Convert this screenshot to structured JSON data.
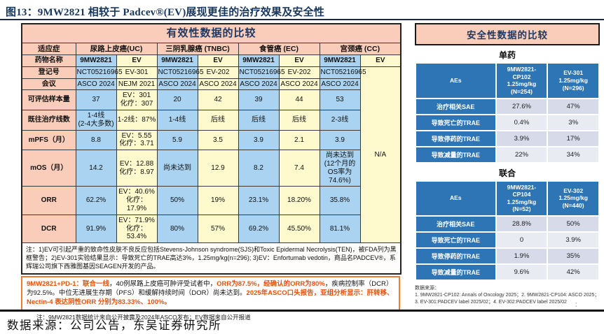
{
  "figure_title": "图13：9MW2821 相较于 Padcev®(EV)展现更佳的治疗效果及安全性",
  "colors": {
    "title_navy": "#1F3864",
    "panel_pink": "#F9CDB9",
    "cell_blue_9mw": "#A9D3F1",
    "cell_yellow_ev": "#FEFACD",
    "safety_header_blue": "#2E75B6",
    "safety_row_light": "#D7DBE9",
    "safety_row_lighter": "#E9EBF3",
    "callout_orange": "#ED7D31",
    "highlight_orange_text": "#E8500A"
  },
  "efficacy": {
    "title": "有效性数据的比较",
    "indication_label": "适应症",
    "indications": [
      "尿路上皮癌(UC)",
      "三阴乳腺癌 (TNBC)",
      "食管癌 (EC)",
      "宫颈癌 (CC)"
    ],
    "merged_cell": "N/A",
    "rows": [
      {
        "label": "药物名称",
        "bold": true,
        "cells": [
          "9MW2821",
          "EV",
          "9MW2821",
          "EV",
          "9MW2821",
          "EV",
          "9MW2821",
          "EV"
        ]
      },
      {
        "label": "登记号",
        "merge_start": true,
        "cells": [
          "NCT05216965",
          "EV-301",
          "NCT05216965",
          "EV-202",
          "NCT05216965",
          "EV-202",
          "NCT05216965"
        ]
      },
      {
        "label": "会议",
        "cells": [
          "ASCO 2024",
          "NEJM 2021",
          "ASCO 2024",
          "ASCO 2024",
          "ASCO 2024",
          "ASCO 2024",
          "ASCO 2024"
        ]
      },
      {
        "label": "可评估样本量",
        "cells": [
          "37",
          "EV：301\n化疗：307",
          "20",
          "42",
          "39",
          "44",
          "53"
        ]
      },
      {
        "label": "既往治疗线数",
        "cells": [
          "1-4线\n(2-4大多数)",
          "1-2线：87%",
          "1-4线",
          "后线",
          "后线",
          "后线",
          "2-3线"
        ]
      },
      {
        "label": "mPFS（月）",
        "cells": [
          "8.8",
          "EV：5.55\n化疗：3.71",
          "5.9",
          "3.5",
          "3.9",
          "2.1",
          "3.9"
        ]
      },
      {
        "label": "mOS（月）",
        "cells": [
          "14.2",
          "EV：12.88\n化疗：8.97",
          "尚未达到",
          "12.9",
          "8.2",
          "7.4",
          "尚未达到\n(12个月的\nOS率为\n74.6%)"
        ]
      },
      {
        "label": "ORR",
        "cells": [
          "62.2%",
          "EV：40.6%\n化疗：17.9%",
          "50%",
          "19%",
          "23.1%",
          "18.20%",
          "35.8%"
        ]
      },
      {
        "label": "DCR",
        "cells": [
          "91.9%",
          "EV：71.9%\n化疗：53.4%",
          "80%",
          "57%",
          "69.2%",
          "45.50%",
          "81.1%"
        ]
      }
    ],
    "note": "注：1)EV可引起严重的致命性皮肤不良反应包括Stevens-Johnson syndrome(SJS)和Toxic Epidermal Necrolysis(TEN)，被FDA列为黑框警告；2)EV-301实验结果显示：导致死亡的TRAE高达3%，1.25mg/kg(n=296); 3)EV：Enfortumab vedotin，商品名PADCEV®，系辉瑞公司旗下西雅图基因SEAGEN开发的产品。"
  },
  "callout": {
    "segments": [
      {
        "text": "9MW2821+PD-1：联合一线",
        "highlight": true
      },
      {
        "text": "，40例尿路上皮癌可肿评受试者中，",
        "highlight": false
      },
      {
        "text": "ORR为87.5%，经确认的ORR为80%",
        "highlight": true
      },
      {
        "text": "，疾病控制率（DCR）为92.5%。中位无进展生存期（PFS）和缓解持续时间（DOR）尚未达到。",
        "highlight": false
      },
      {
        "text": "2025年ASCO口头报告，亚组分析显示：肝转移、Nectin-4 表达阴性ORR 分别为83.33%、100%。",
        "highlight": true
      }
    ]
  },
  "left_footnote": "注：9MW2821数据统计来自公开披露及2024年ASCO发布；EV数据来自公开报道",
  "safety": {
    "title": "安全性数据的比较",
    "mono": {
      "subtitle": "单药",
      "header": [
        "AEs",
        "9MW2821-\nCP102\n1.25mg/kg\n(N=254)",
        "EV-301\n1.25mg/kg\n(N=296)"
      ],
      "rows": [
        [
          "治疗相关SAE",
          "27.6%",
          "47%"
        ],
        [
          "导致死亡的TRAE",
          "0.4%",
          "3%"
        ],
        [
          "导致停药的TRAE",
          "3.9%",
          "17%"
        ],
        [
          "导致减量的TRAE",
          "22%",
          "34%"
        ]
      ]
    },
    "combo": {
      "subtitle": "联合",
      "header": [
        "AEs",
        "9MW2821-\nCP104\n1.25mg/kg\n(N=52)",
        "EV-302\n1.25mg/kg\n(N=440)"
      ],
      "rows": [
        [
          "治疗相关SAE",
          "28.8%",
          "50%"
        ],
        [
          "导致死亡的TRAE",
          "0",
          "3.9%"
        ],
        [
          "导致停药的TRAE",
          "1.9%",
          "35%"
        ],
        [
          "导致减量的TRAE",
          "9.6%",
          "42%"
        ]
      ]
    },
    "source_note": "数据来源：\n1. 9MW2821-CP102: Annals of Oncology 2025；2. 9MW2821-CP104: ASCO 2025；\n3. EV-301:PADCEV label 2025/02；4. EV-302:PADCEV label 2025/02"
  },
  "artifact_colon": "：",
  "bottom_source": "数据来源：公司公告，东吴证券研究所"
}
